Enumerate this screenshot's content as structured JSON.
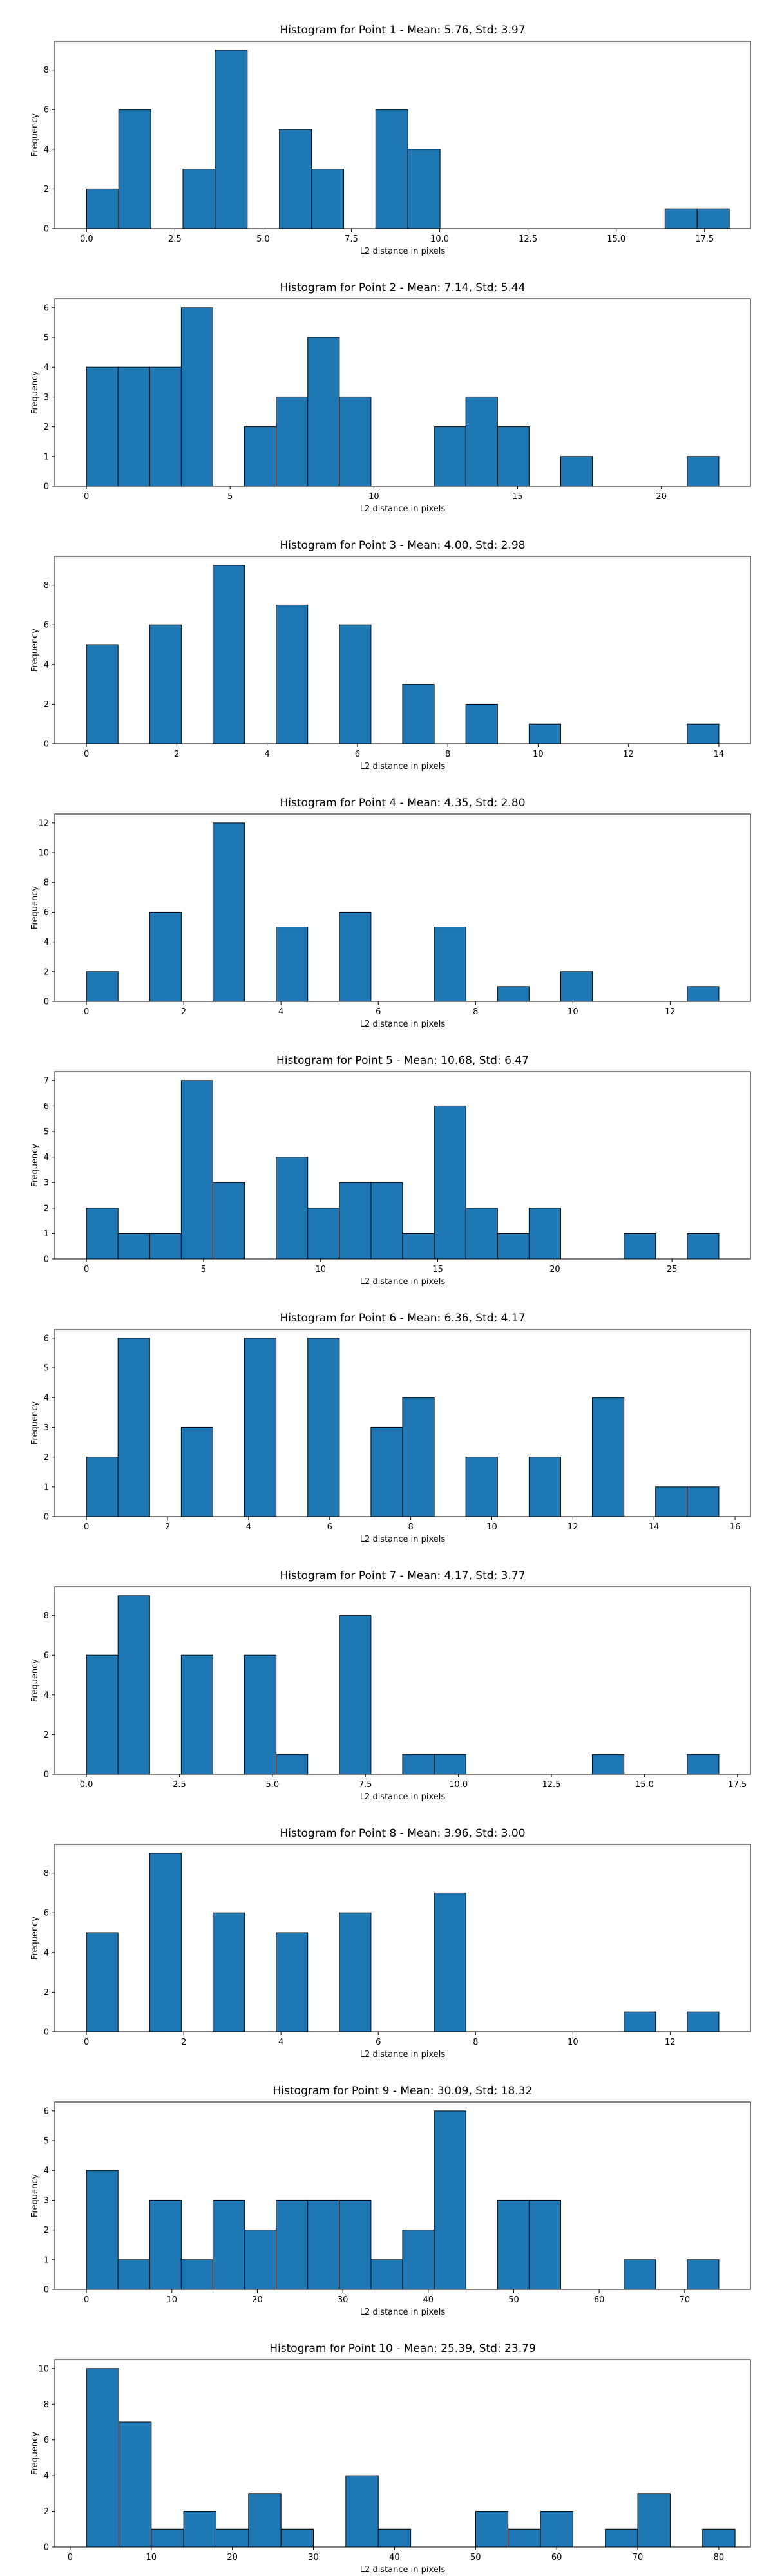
{
  "chart_data": [
    {
      "type": "bar",
      "title": "Histogram for Point 1 - Mean: 5.76, Std: 3.97",
      "xlabel": "L2 distance in pixels",
      "ylabel": "Frequency",
      "xlim": [
        -0.9,
        18.8
      ],
      "ylim": [
        0,
        9.45
      ],
      "xticks": [
        0.0,
        2.5,
        5.0,
        7.5,
        10.0,
        12.5,
        15.0,
        17.5
      ],
      "xtick_labels": [
        "0.0",
        "2.5",
        "5.0",
        "7.5",
        "10.0",
        "12.5",
        "15.0",
        "17.5"
      ],
      "yticks": [
        0,
        2,
        4,
        6,
        8
      ],
      "bins": [
        {
          "x0": 0.0,
          "x1": 0.91,
          "count": 2
        },
        {
          "x0": 0.91,
          "x1": 1.82,
          "count": 6
        },
        {
          "x0": 2.73,
          "x1": 3.64,
          "count": 3
        },
        {
          "x0": 3.64,
          "x1": 4.55,
          "count": 9
        },
        {
          "x0": 5.46,
          "x1": 6.37,
          "count": 5
        },
        {
          "x0": 6.37,
          "x1": 7.28,
          "count": 3
        },
        {
          "x0": 8.19,
          "x1": 9.1,
          "count": 6
        },
        {
          "x0": 9.1,
          "x1": 10.01,
          "count": 4
        },
        {
          "x0": 16.38,
          "x1": 17.29,
          "count": 1
        },
        {
          "x0": 17.29,
          "x1": 18.2,
          "count": 1
        }
      ]
    },
    {
      "type": "bar",
      "title": "Histogram for Point 2 - Mean: 7.14, Std: 5.44",
      "xlabel": "L2 distance in pixels",
      "ylabel": "Frequency",
      "xlim": [
        -1.1,
        23.1
      ],
      "ylim": [
        0,
        6.3
      ],
      "xticks": [
        0,
        5,
        10,
        15,
        20
      ],
      "xtick_labels": [
        "0",
        "5",
        "10",
        "15",
        "20"
      ],
      "yticks": [
        0,
        1,
        2,
        3,
        4,
        5,
        6
      ],
      "bins": [
        {
          "x0": 0.0,
          "x1": 1.1,
          "count": 4
        },
        {
          "x0": 1.1,
          "x1": 2.2,
          "count": 4
        },
        {
          "x0": 2.2,
          "x1": 3.3,
          "count": 4
        },
        {
          "x0": 3.3,
          "x1": 4.4,
          "count": 6
        },
        {
          "x0": 5.5,
          "x1": 6.6,
          "count": 2
        },
        {
          "x0": 6.6,
          "x1": 7.7,
          "count": 3
        },
        {
          "x0": 7.7,
          "x1": 8.8,
          "count": 5
        },
        {
          "x0": 8.8,
          "x1": 9.9,
          "count": 3
        },
        {
          "x0": 12.1,
          "x1": 13.2,
          "count": 2
        },
        {
          "x0": 13.2,
          "x1": 14.3,
          "count": 3
        },
        {
          "x0": 14.3,
          "x1": 15.4,
          "count": 2
        },
        {
          "x0": 16.5,
          "x1": 17.6,
          "count": 1
        },
        {
          "x0": 20.9,
          "x1": 22.0,
          "count": 1
        }
      ]
    },
    {
      "type": "bar",
      "title": "Histogram for Point 3 - Mean: 4.00, Std: 2.98",
      "xlabel": "L2 distance in pixels",
      "ylabel": "Frequency",
      "xlim": [
        -0.7,
        14.7
      ],
      "ylim": [
        0,
        9.45
      ],
      "xticks": [
        0,
        2,
        4,
        6,
        8,
        10,
        12,
        14
      ],
      "xtick_labels": [
        "0",
        "2",
        "4",
        "6",
        "8",
        "10",
        "12",
        "14"
      ],
      "yticks": [
        0,
        2,
        4,
        6,
        8
      ],
      "bins": [
        {
          "x0": 0.0,
          "x1": 0.7,
          "count": 5
        },
        {
          "x0": 1.4,
          "x1": 2.1,
          "count": 6
        },
        {
          "x0": 2.8,
          "x1": 3.5,
          "count": 9
        },
        {
          "x0": 4.2,
          "x1": 4.9,
          "count": 7
        },
        {
          "x0": 5.6,
          "x1": 6.3,
          "count": 6
        },
        {
          "x0": 7.0,
          "x1": 7.7,
          "count": 3
        },
        {
          "x0": 8.4,
          "x1": 9.1,
          "count": 2
        },
        {
          "x0": 9.8,
          "x1": 10.5,
          "count": 1
        },
        {
          "x0": 13.3,
          "x1": 14.0,
          "count": 1
        }
      ]
    },
    {
      "type": "bar",
      "title": "Histogram for Point 4 - Mean: 4.35, Std: 2.80",
      "xlabel": "L2 distance in pixels",
      "ylabel": "Frequency",
      "xlim": [
        -0.65,
        13.65
      ],
      "ylim": [
        0,
        12.6
      ],
      "xticks": [
        0,
        2,
        4,
        6,
        8,
        10,
        12
      ],
      "xtick_labels": [
        "0",
        "2",
        "4",
        "6",
        "8",
        "10",
        "12"
      ],
      "yticks": [
        0,
        2,
        4,
        6,
        8,
        10,
        12
      ],
      "bins": [
        {
          "x0": 0.0,
          "x1": 0.65,
          "count": 2
        },
        {
          "x0": 1.3,
          "x1": 1.95,
          "count": 6
        },
        {
          "x0": 2.6,
          "x1": 3.25,
          "count": 12
        },
        {
          "x0": 3.9,
          "x1": 4.55,
          "count": 5
        },
        {
          "x0": 5.2,
          "x1": 5.85,
          "count": 6
        },
        {
          "x0": 7.15,
          "x1": 7.8,
          "count": 5
        },
        {
          "x0": 8.45,
          "x1": 9.1,
          "count": 1
        },
        {
          "x0": 9.75,
          "x1": 10.4,
          "count": 2
        },
        {
          "x0": 12.35,
          "x1": 13.0,
          "count": 1
        }
      ]
    },
    {
      "type": "bar",
      "title": "Histogram for Point 5 - Mean: 10.68, Std: 6.47",
      "xlabel": "L2 distance in pixels",
      "ylabel": "Frequency",
      "xlim": [
        -1.35,
        28.35
      ],
      "ylim": [
        0,
        7.35
      ],
      "xticks": [
        0,
        5,
        10,
        15,
        20,
        25
      ],
      "xtick_labels": [
        "0",
        "5",
        "10",
        "15",
        "20",
        "25"
      ],
      "yticks": [
        0,
        1,
        2,
        3,
        4,
        5,
        6,
        7
      ],
      "bins": [
        {
          "x0": 0.0,
          "x1": 1.35,
          "count": 2
        },
        {
          "x0": 1.35,
          "x1": 2.7,
          "count": 1
        },
        {
          "x0": 2.7,
          "x1": 4.05,
          "count": 1
        },
        {
          "x0": 4.05,
          "x1": 5.4,
          "count": 7
        },
        {
          "x0": 5.4,
          "x1": 6.75,
          "count": 3
        },
        {
          "x0": 8.1,
          "x1": 9.45,
          "count": 4
        },
        {
          "x0": 9.45,
          "x1": 10.8,
          "count": 2
        },
        {
          "x0": 10.8,
          "x1": 12.15,
          "count": 3
        },
        {
          "x0": 12.15,
          "x1": 13.5,
          "count": 3
        },
        {
          "x0": 13.5,
          "x1": 14.85,
          "count": 1
        },
        {
          "x0": 14.85,
          "x1": 16.2,
          "count": 6
        },
        {
          "x0": 16.2,
          "x1": 17.55,
          "count": 2
        },
        {
          "x0": 17.55,
          "x1": 18.9,
          "count": 1
        },
        {
          "x0": 18.9,
          "x1": 20.25,
          "count": 2
        },
        {
          "x0": 22.95,
          "x1": 24.3,
          "count": 1
        },
        {
          "x0": 25.65,
          "x1": 27.0,
          "count": 1
        }
      ]
    },
    {
      "type": "bar",
      "title": "Histogram for Point 6 - Mean: 6.36, Std: 4.17",
      "xlabel": "L2 distance in pixels",
      "ylabel": "Frequency",
      "xlim": [
        -0.78,
        16.38
      ],
      "ylim": [
        0,
        6.3
      ],
      "xticks": [
        0,
        2,
        4,
        6,
        8,
        10,
        12,
        14,
        16
      ],
      "xtick_labels": [
        "0",
        "2",
        "4",
        "6",
        "8",
        "10",
        "12",
        "14",
        "16"
      ],
      "yticks": [
        0,
        1,
        2,
        3,
        4,
        5,
        6
      ],
      "bins": [
        {
          "x0": 0.0,
          "x1": 0.78,
          "count": 2
        },
        {
          "x0": 0.78,
          "x1": 1.56,
          "count": 6
        },
        {
          "x0": 2.34,
          "x1": 3.12,
          "count": 3
        },
        {
          "x0": 3.9,
          "x1": 4.68,
          "count": 6
        },
        {
          "x0": 5.46,
          "x1": 6.24,
          "count": 6
        },
        {
          "x0": 7.02,
          "x1": 7.8,
          "count": 3
        },
        {
          "x0": 7.8,
          "x1": 8.58,
          "count": 4
        },
        {
          "x0": 9.36,
          "x1": 10.14,
          "count": 2
        },
        {
          "x0": 10.92,
          "x1": 11.7,
          "count": 2
        },
        {
          "x0": 12.48,
          "x1": 13.26,
          "count": 4
        },
        {
          "x0": 14.04,
          "x1": 14.82,
          "count": 1
        },
        {
          "x0": 14.82,
          "x1": 15.6,
          "count": 1
        }
      ]
    },
    {
      "type": "bar",
      "title": "Histogram for Point 7 - Mean: 4.17, Std: 3.77",
      "xlabel": "L2 distance in pixels",
      "ylabel": "Frequency",
      "xlim": [
        -0.85,
        17.85
      ],
      "ylim": [
        0,
        9.45
      ],
      "xticks": [
        0.0,
        2.5,
        5.0,
        7.5,
        10.0,
        12.5,
        15.0,
        17.5
      ],
      "xtick_labels": [
        "0.0",
        "2.5",
        "5.0",
        "7.5",
        "10.0",
        "12.5",
        "15.0",
        "17.5"
      ],
      "yticks": [
        0,
        2,
        4,
        6,
        8
      ],
      "bins": [
        {
          "x0": 0.0,
          "x1": 0.85,
          "count": 6
        },
        {
          "x0": 0.85,
          "x1": 1.7,
          "count": 9
        },
        {
          "x0": 2.55,
          "x1": 3.4,
          "count": 6
        },
        {
          "x0": 4.25,
          "x1": 5.1,
          "count": 6
        },
        {
          "x0": 5.1,
          "x1": 5.95,
          "count": 1
        },
        {
          "x0": 6.8,
          "x1": 7.65,
          "count": 8
        },
        {
          "x0": 8.5,
          "x1": 9.35,
          "count": 1
        },
        {
          "x0": 9.35,
          "x1": 10.2,
          "count": 1
        },
        {
          "x0": 13.6,
          "x1": 14.45,
          "count": 1
        },
        {
          "x0": 16.15,
          "x1": 17.0,
          "count": 1
        }
      ]
    },
    {
      "type": "bar",
      "title": "Histogram for Point 8 - Mean: 3.96, Std: 3.00",
      "xlabel": "L2 distance in pixels",
      "ylabel": "Frequency",
      "xlim": [
        -0.65,
        13.65
      ],
      "ylim": [
        0,
        9.45
      ],
      "xticks": [
        0,
        2,
        4,
        6,
        8,
        10,
        12
      ],
      "xtick_labels": [
        "0",
        "2",
        "4",
        "6",
        "8",
        "10",
        "12"
      ],
      "yticks": [
        0,
        2,
        4,
        6,
        8
      ],
      "bins": [
        {
          "x0": 0.0,
          "x1": 0.65,
          "count": 5
        },
        {
          "x0": 1.3,
          "x1": 1.95,
          "count": 9
        },
        {
          "x0": 2.6,
          "x1": 3.25,
          "count": 6
        },
        {
          "x0": 3.9,
          "x1": 4.55,
          "count": 5
        },
        {
          "x0": 5.2,
          "x1": 5.85,
          "count": 6
        },
        {
          "x0": 7.15,
          "x1": 7.8,
          "count": 7
        },
        {
          "x0": 11.05,
          "x1": 11.7,
          "count": 1
        },
        {
          "x0": 12.35,
          "x1": 13.0,
          "count": 1
        }
      ]
    },
    {
      "type": "bar",
      "title": "Histogram for Point 9 - Mean: 30.09, Std: 18.32",
      "xlabel": "L2 distance in pixels",
      "ylabel": "Frequency",
      "xlim": [
        -3.7,
        77.7
      ],
      "ylim": [
        0,
        6.3
      ],
      "xticks": [
        0,
        10,
        20,
        30,
        40,
        50,
        60,
        70
      ],
      "xtick_labels": [
        "0",
        "10",
        "20",
        "30",
        "40",
        "50",
        "60",
        "70"
      ],
      "yticks": [
        0,
        1,
        2,
        3,
        4,
        5,
        6
      ],
      "bins": [
        {
          "x0": 0.0,
          "x1": 3.7,
          "count": 4
        },
        {
          "x0": 3.7,
          "x1": 7.4,
          "count": 1
        },
        {
          "x0": 7.4,
          "x1": 11.1,
          "count": 3
        },
        {
          "x0": 11.1,
          "x1": 14.8,
          "count": 1
        },
        {
          "x0": 14.8,
          "x1": 18.5,
          "count": 3
        },
        {
          "x0": 18.5,
          "x1": 22.2,
          "count": 2
        },
        {
          "x0": 22.2,
          "x1": 25.9,
          "count": 3
        },
        {
          "x0": 25.9,
          "x1": 29.6,
          "count": 3
        },
        {
          "x0": 29.6,
          "x1": 33.3,
          "count": 3
        },
        {
          "x0": 33.3,
          "x1": 37.0,
          "count": 1
        },
        {
          "x0": 37.0,
          "x1": 40.7,
          "count": 2
        },
        {
          "x0": 40.7,
          "x1": 44.4,
          "count": 6
        },
        {
          "x0": 48.1,
          "x1": 51.8,
          "count": 3
        },
        {
          "x0": 51.8,
          "x1": 55.5,
          "count": 3
        },
        {
          "x0": 62.9,
          "x1": 66.6,
          "count": 1
        },
        {
          "x0": 70.3,
          "x1": 74.0,
          "count": 1
        }
      ]
    },
    {
      "type": "bar",
      "title": "Histogram for Point 10 - Mean: 25.39, Std: 23.79",
      "xlabel": "L2 distance in pixels",
      "ylabel": "Frequency",
      "xlim": [
        -1.9,
        83.9
      ],
      "ylim": [
        0,
        10.5
      ],
      "xticks": [
        0,
        10,
        20,
        30,
        40,
        50,
        60,
        70,
        80
      ],
      "xtick_labels": [
        "0",
        "10",
        "20",
        "30",
        "40",
        "50",
        "60",
        "70",
        "80"
      ],
      "yticks": [
        0,
        2,
        4,
        6,
        8,
        10
      ],
      "bins": [
        {
          "x0": 2.0,
          "x1": 6.0,
          "count": 10
        },
        {
          "x0": 6.0,
          "x1": 10.0,
          "count": 7
        },
        {
          "x0": 10.0,
          "x1": 14.0,
          "count": 1
        },
        {
          "x0": 14.0,
          "x1": 18.0,
          "count": 2
        },
        {
          "x0": 18.0,
          "x1": 22.0,
          "count": 1
        },
        {
          "x0": 22.0,
          "x1": 26.0,
          "count": 3
        },
        {
          "x0": 26.0,
          "x1": 30.0,
          "count": 1
        },
        {
          "x0": 34.0,
          "x1": 38.0,
          "count": 4
        },
        {
          "x0": 38.0,
          "x1": 42.0,
          "count": 1
        },
        {
          "x0": 50.0,
          "x1": 54.0,
          "count": 2
        },
        {
          "x0": 54.0,
          "x1": 58.0,
          "count": 1
        },
        {
          "x0": 58.0,
          "x1": 62.0,
          "count": 2
        },
        {
          "x0": 66.0,
          "x1": 70.0,
          "count": 1
        },
        {
          "x0": 70.0,
          "x1": 74.0,
          "count": 3
        },
        {
          "x0": 78.0,
          "x1": 82.0,
          "count": 1
        }
      ]
    }
  ],
  "style": {
    "bar_color": "#1f77b4",
    "edge_color": "#000000"
  }
}
